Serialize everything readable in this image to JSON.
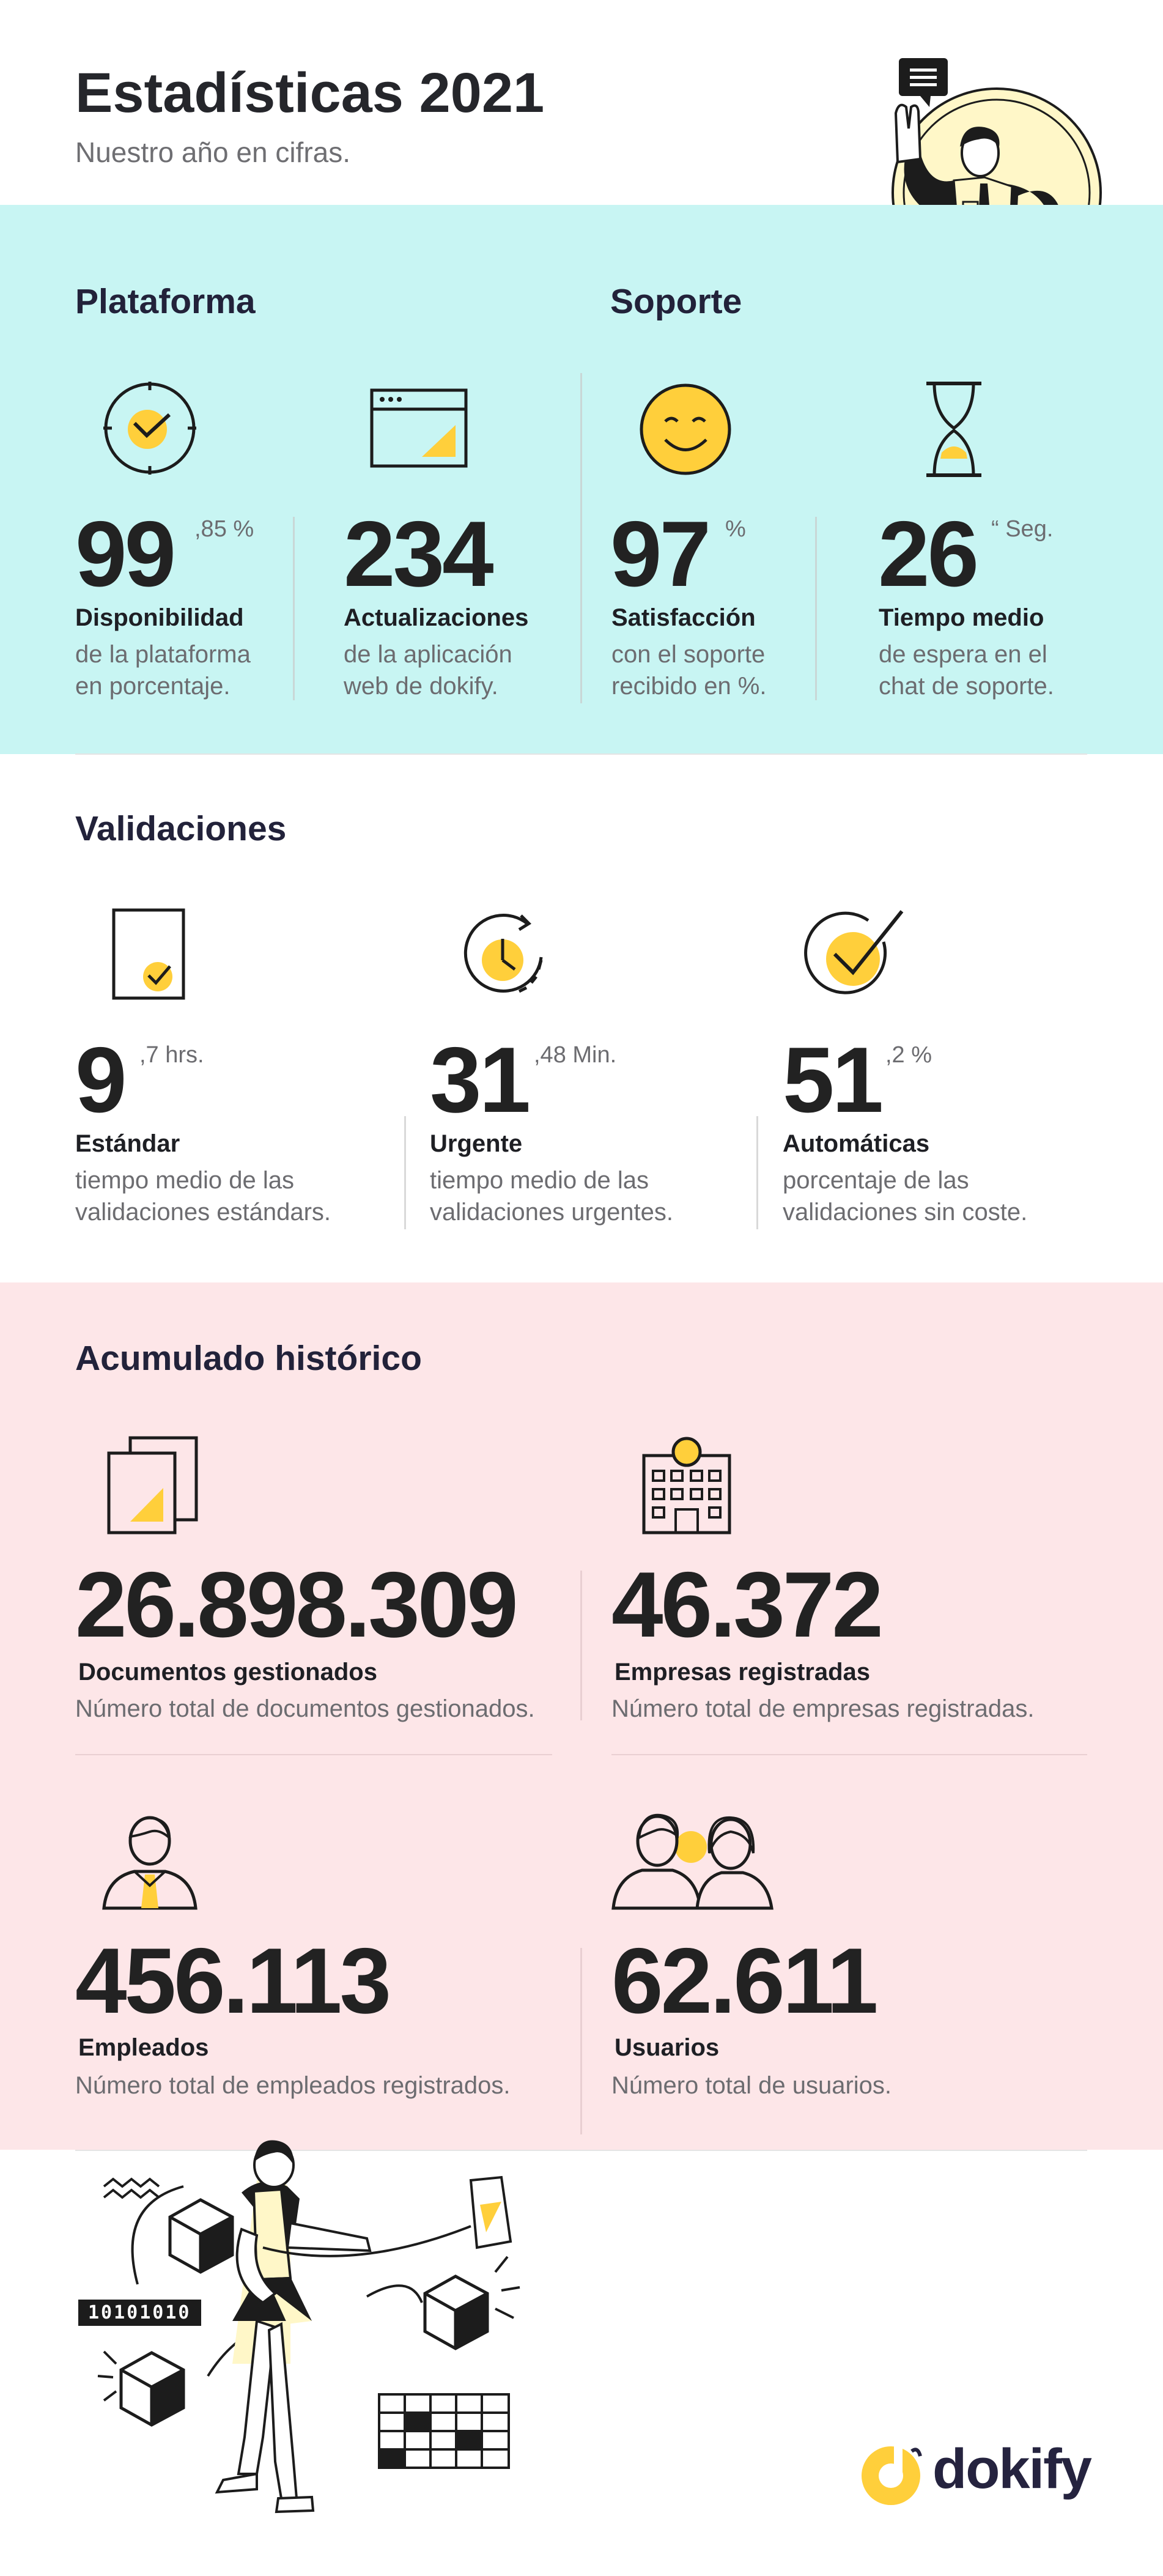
{
  "header": {
    "title": "Estadísticas 2021",
    "subtitle": "Nuestro año en cifras."
  },
  "plataforma": {
    "title": "Plataforma",
    "items": [
      {
        "number": "99",
        "suffix": ",85 %",
        "label": "Disponibilidad",
        "desc_line1": "de la plataforma",
        "desc_line2": "en porcentaje.",
        "icon": "clock-check-icon"
      },
      {
        "number": "234",
        "suffix": "",
        "label": "Actualizaciones",
        "desc_line1": "de la aplicación",
        "desc_line2": "web de dokify.",
        "icon": "browser-window-icon"
      }
    ]
  },
  "soporte": {
    "title": "Soporte",
    "items": [
      {
        "number": "97",
        "suffix": "%",
        "label": "Satisfacción",
        "desc_line1": "con el soporte",
        "desc_line2": "recibido en %.",
        "icon": "smiley-face-icon"
      },
      {
        "number": "26",
        "suffix": "“ Seg.",
        "label": "Tiempo medio",
        "desc_line1": "de espera en el",
        "desc_line2": "chat de soporte.",
        "icon": "hourglass-icon"
      }
    ]
  },
  "validaciones": {
    "title": "Validaciones",
    "items": [
      {
        "number": "9",
        "suffix": ",7 hrs.",
        "label": "Estándar",
        "desc_line1": "tiempo medio de las",
        "desc_line2": "validaciones estándars.",
        "icon": "document-check-icon"
      },
      {
        "number": "31",
        "suffix": ",48 Min.",
        "label": "Urgente",
        "desc_line1": "tiempo medio de las",
        "desc_line2": "validaciones urgentes.",
        "icon": "clock-refresh-icon"
      },
      {
        "number": "51",
        "suffix": ",2 %",
        "label": "Automáticas",
        "desc_line1": "porcentaje de las",
        "desc_line2": "validaciones sin coste.",
        "icon": "circle-check-icon"
      }
    ]
  },
  "acumulado": {
    "title": "Acumulado histórico",
    "items": [
      {
        "number": "26.898.309",
        "label": "Documentos gestionados",
        "desc": "Número total de documentos gestionados.",
        "icon": "documents-stack-icon"
      },
      {
        "number": "46.372",
        "label": "Empresas registradas",
        "desc": "Número total de empresas registradas.",
        "icon": "office-building-icon"
      },
      {
        "number": "456.113",
        "label": "Empleados",
        "desc": "Número total de empleados registrados.",
        "icon": "employee-person-icon"
      },
      {
        "number": "62.611",
        "label": "Usuarios",
        "desc": "Número total de usuarios.",
        "icon": "users-group-icon"
      }
    ]
  },
  "illustration": {
    "binary": "10101010"
  },
  "brand": {
    "name": "dokify",
    "accent": "#ffcf3b",
    "cyan_band": "#c8f5f3",
    "pink_band": "#fde6e8"
  }
}
